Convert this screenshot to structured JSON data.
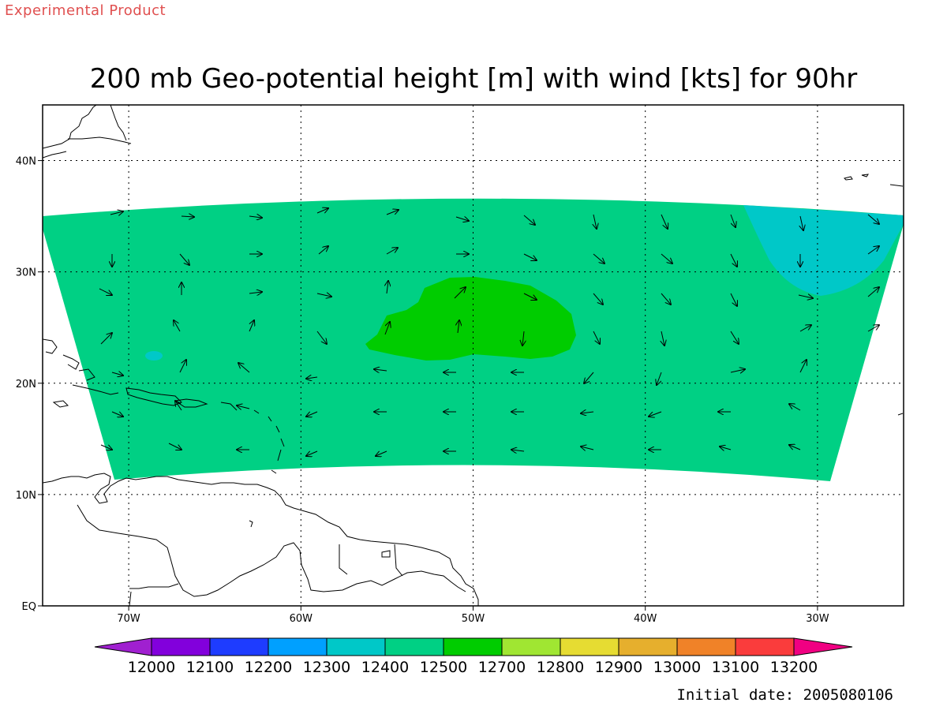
{
  "header": {
    "experimental_label": "Experimental Product",
    "title": "200 mb Geo-potential height [m] with wind [kts] for 90hr"
  },
  "footer": {
    "initial_date": "Initial date: 2005080106"
  },
  "map": {
    "lon_range": [
      -75,
      -25
    ],
    "lat_range": [
      0,
      45
    ],
    "lon_ticks": [
      {
        "value": -70,
        "label": "70W"
      },
      {
        "value": -60,
        "label": "60W"
      },
      {
        "value": -50,
        "label": "50W"
      },
      {
        "value": -40,
        "label": "40W"
      },
      {
        "value": -30,
        "label": "30W"
      }
    ],
    "lat_ticks": [
      {
        "value": 0,
        "label": "EQ"
      },
      {
        "value": 10,
        "label": "10N"
      },
      {
        "value": 20,
        "label": "20N"
      },
      {
        "value": 30,
        "label": "30N"
      },
      {
        "value": 40,
        "label": "40N"
      }
    ],
    "grid": "dotted",
    "field_fill_color": "#00d084",
    "high_region_color": "#00cc00",
    "low_region_color": "#00c8c8"
  },
  "colorbar": {
    "labels": [
      "12000",
      "12100",
      "12200",
      "12300",
      "12400",
      "12500",
      "12700",
      "12800",
      "12900",
      "13000",
      "13100",
      "13200"
    ],
    "colors": [
      "#a020d0",
      "#8200dc",
      "#1e3cff",
      "#00a0ff",
      "#00c8c8",
      "#00d084",
      "#00cc00",
      "#a0e632",
      "#e6dc32",
      "#e6af2d",
      "#f08228",
      "#fa3c3c",
      "#f00082"
    ]
  }
}
